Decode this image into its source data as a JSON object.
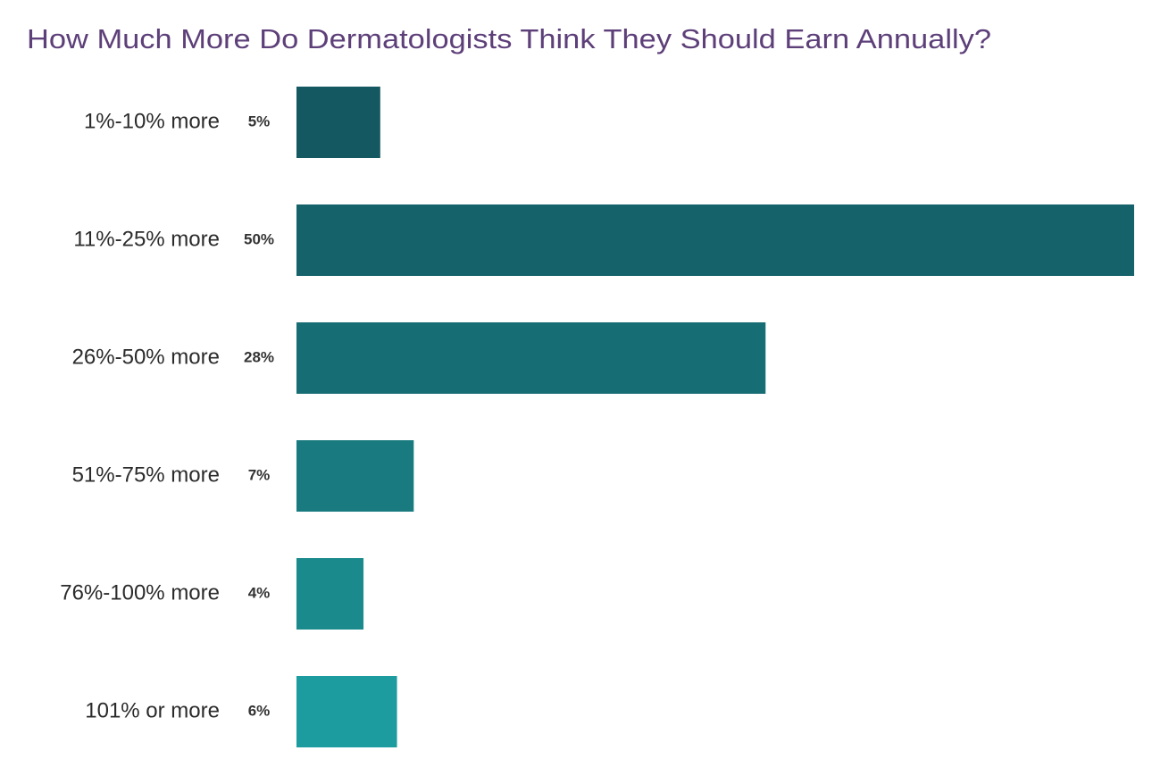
{
  "chart_data": {
    "type": "hbar",
    "title": "How Much More Do Dermatologists Think They Should Earn Annually?",
    "categories": [
      "1%-10% more",
      "11%-25% more",
      "26%-50% more",
      "51%-75% more",
      "76%-100% more",
      "101% or more"
    ],
    "values": [
      5,
      50,
      28,
      7,
      4,
      6
    ],
    "value_labels": [
      "5%",
      "50%",
      "28%",
      "7%",
      "4%",
      "6%"
    ],
    "colors": [
      "#145861",
      "#15626b",
      "#176d74",
      "#197b80",
      "#1b8a8c",
      "#1d9c9f"
    ]
  }
}
